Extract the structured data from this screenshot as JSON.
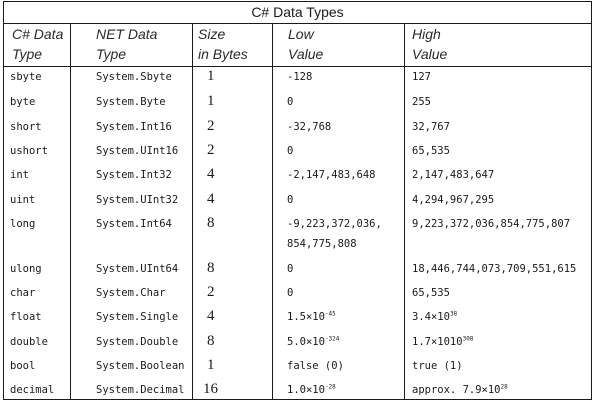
{
  "title": "C# Data Types",
  "headers": {
    "cs": [
      "C# Data",
      "Type"
    ],
    "net": [
      "NET Data",
      "Type"
    ],
    "size": [
      "Size",
      "in Bytes"
    ],
    "low": [
      "Low",
      "Value"
    ],
    "high": [
      "High",
      "Value"
    ]
  },
  "rows": [
    {
      "cs": "sbyte",
      "net": "System.Sbyte",
      "size": "1",
      "low": "-128",
      "high": "127"
    },
    {
      "cs": "byte",
      "net": "System.Byte",
      "size": "1",
      "low": "0",
      "high": "255"
    },
    {
      "cs": "short",
      "net": "System.Int16",
      "size": "2",
      "low": "-32,768",
      "high": "32,767"
    },
    {
      "cs": "ushort",
      "net": "System.UInt16",
      "size": "2",
      "low": "0",
      "high": "65,535"
    },
    {
      "cs": "int",
      "net": "System.Int32",
      "size": "4",
      "low": "-2,147,483,648",
      "high": "2,147,483,647"
    },
    {
      "cs": "uint",
      "net": "System.UInt32",
      "size": "4",
      "low": "0",
      "high": "4,294,967,295"
    },
    {
      "cs": "long",
      "net": "System.Int64",
      "size": "8",
      "low": "-9,223,372,036,",
      "low2": "854,775,808",
      "high": "9,223,372,036,854,775,807"
    },
    {
      "cs": "ulong",
      "net": "System.UInt64",
      "size": "8",
      "low": "0",
      "high": "18,446,744,073,709,551,615"
    },
    {
      "cs": "char",
      "net": "System.Char",
      "size": "2",
      "low": "0",
      "high": "65,535"
    },
    {
      "cs": "float",
      "net": "System.Single",
      "size": "4",
      "low": "1.5×10",
      "low_exp": "-45",
      "high": "3.4×10",
      "high_exp": "38"
    },
    {
      "cs": "double",
      "net": "System.Double",
      "size": "8",
      "low": "5.0×10",
      "low_exp": "-324",
      "high": "1.7×1010",
      "high_exp": "308"
    },
    {
      "cs": "bool",
      "net": "System.Boolean",
      "size": "1",
      "low": "false (0)",
      "high": "true (1)"
    },
    {
      "cs": "decimal",
      "net": "System.Decimal",
      "size": "16",
      "low": "1.0×10",
      "low_exp": "-28",
      "high": "approx. 7.9×10",
      "high_exp": "28"
    }
  ]
}
